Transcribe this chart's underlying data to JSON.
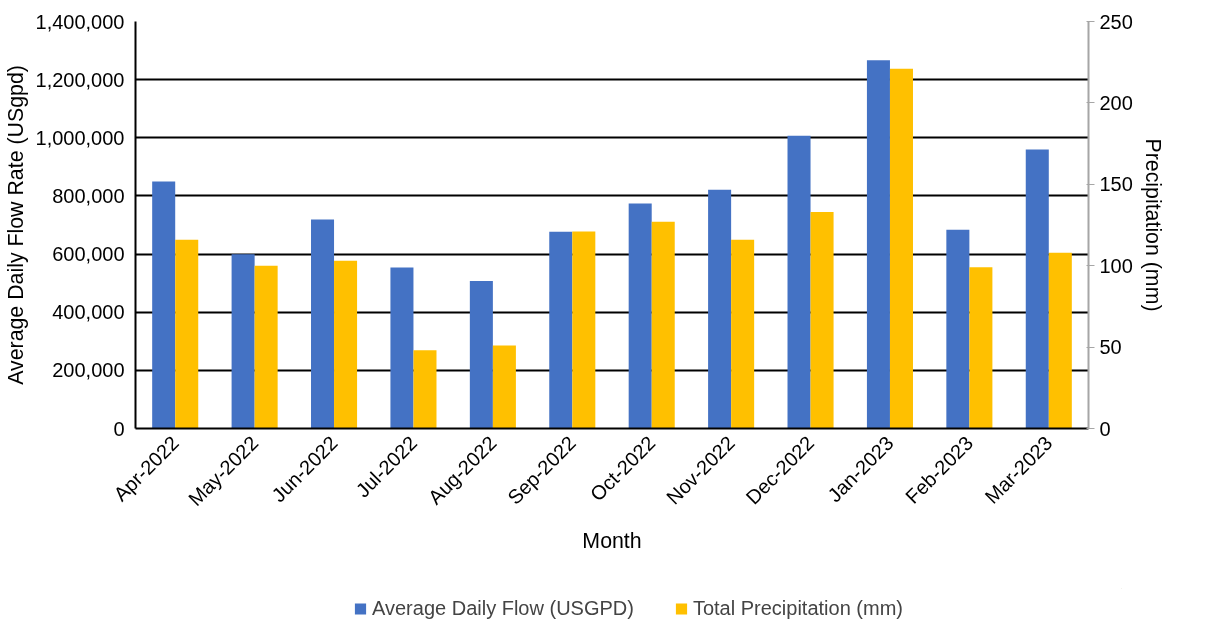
{
  "chart_data": {
    "type": "bar",
    "xlabel": "Month",
    "ylabel": "Average Daily Flow Rate (USgpd)",
    "y2label": "Precipitation (mm)",
    "categories": [
      "Apr-2022",
      "May-2022",
      "Jun-2022",
      "Jul-2022",
      "Aug-2022",
      "Sep-2022",
      "Oct-2022",
      "Nov-2022",
      "Dec-2022",
      "Jan-2023",
      "Feb-2023",
      "Mar-2023"
    ],
    "series": [
      {
        "name": "Average Daily Flow (USGPD)",
        "color": "#4472c4",
        "values": [
          850000,
          599000,
          719000,
          554000,
          507000,
          677000,
          774000,
          821000,
          1007000,
          1267000,
          684000,
          960000
        ]
      },
      {
        "name": "Total Precipitation (mm)",
        "color": "#ffc000",
        "axis": "y2",
        "values": [
          116,
          100,
          103,
          48,
          51,
          121,
          127,
          116,
          133,
          221,
          99,
          108
        ]
      }
    ],
    "ylim": [
      0,
      1400000
    ],
    "yticks": [
      0,
      {
        "value": 200000,
        "label": "200,000"
      },
      {
        "value": 400000,
        "label": "400,000"
      },
      {
        "value": 600000,
        "label": "600,000"
      },
      {
        "value": 800000,
        "label": "800,000"
      },
      {
        "value": 1000000,
        "label": "1,000,000"
      },
      {
        "value": 1200000,
        "label": "1,200,000"
      },
      {
        "value": 1400000,
        "label": "1,400,000"
      }
    ],
    "y2lim": [
      0,
      250
    ],
    "y2ticks": [
      0,
      50,
      100,
      150,
      200,
      250
    ],
    "grid": "y",
    "legend": "bottom"
  }
}
